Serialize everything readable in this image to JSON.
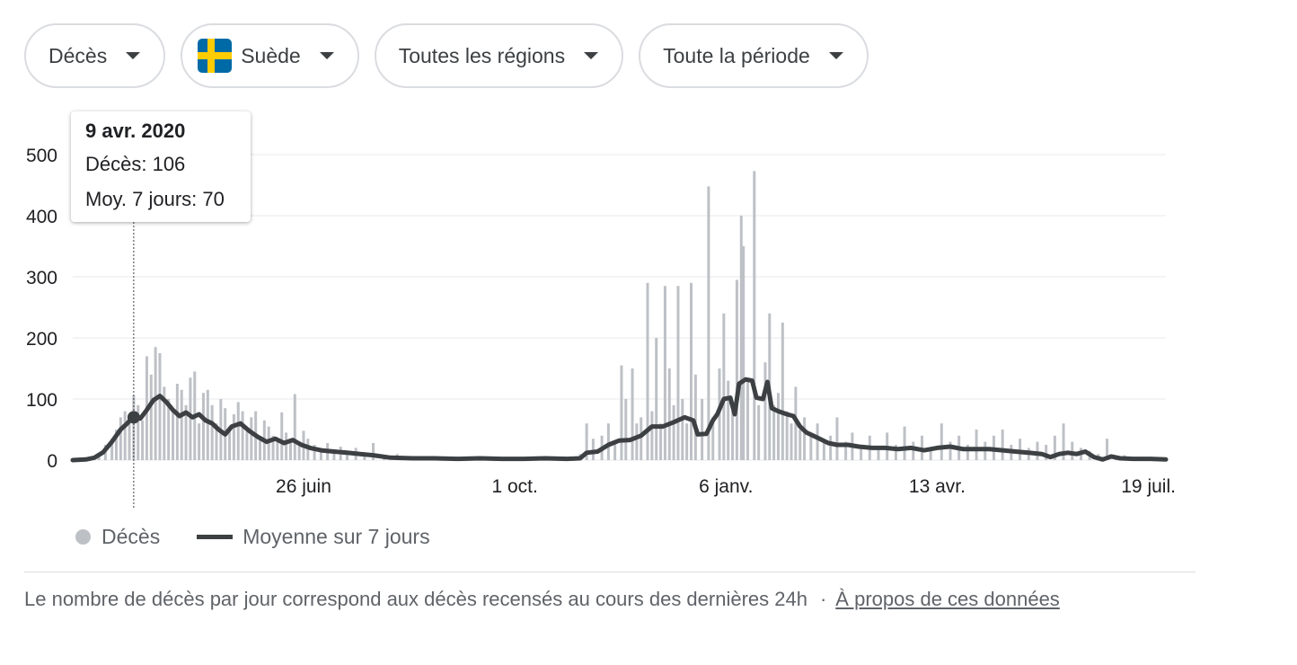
{
  "filters": {
    "metric": "Décès",
    "country": "Suède",
    "region": "Toutes les régions",
    "period": "Toute la période"
  },
  "tooltip": {
    "date": "9 avr. 2020",
    "deaths_label": "Décès: 106",
    "avg_label": "Moy. 7 jours: 70"
  },
  "legend": {
    "deaths": "Décès",
    "average": "Moyenne sur 7 jours"
  },
  "footnote": {
    "text": "Le nombre de décès par jour correspond aux décès recensés au cours des dernières 24h",
    "separator": "·",
    "link": "À propos de ces données"
  },
  "colors": {
    "bars": "#bdc1c6",
    "line": "#3c4043",
    "grid": "#e8eaed",
    "flag_blue": "#006AA7",
    "flag_yellow": "#FECC00"
  },
  "chart_data": {
    "type": "bar",
    "title": "",
    "xlabel": "",
    "ylabel": "",
    "ylim": [
      0,
      500
    ],
    "yticks": [
      0,
      100,
      200,
      300,
      400,
      500
    ],
    "xlim": [
      "2020-03-12",
      "2021-07-27"
    ],
    "xticks": [
      {
        "date": "2020-06-26",
        "label": "26 juin"
      },
      {
        "date": "2020-10-01",
        "label": "1 oct."
      },
      {
        "date": "2021-01-06",
        "label": "6 janv."
      },
      {
        "date": "2021-04-13",
        "label": "13 avr."
      },
      {
        "date": "2021-07-19",
        "label": "19 juil."
      }
    ],
    "grid": true,
    "legend_position": "bottom-left",
    "highlight": {
      "date": "2020-04-09",
      "deaths": 106,
      "avg7": 70
    },
    "series": [
      {
        "name": "Décès",
        "style": "bar",
        "points": [
          [
            "2020-03-20",
            5
          ],
          [
            "2020-03-24",
            12
          ],
          [
            "2020-03-27",
            25
          ],
          [
            "2020-03-30",
            35
          ],
          [
            "2020-04-01",
            50
          ],
          [
            "2020-04-03",
            70
          ],
          [
            "2020-04-05",
            80
          ],
          [
            "2020-04-07",
            60
          ],
          [
            "2020-04-09",
            106
          ],
          [
            "2020-04-11",
            90
          ],
          [
            "2020-04-13",
            65
          ],
          [
            "2020-04-15",
            170
          ],
          [
            "2020-04-17",
            140
          ],
          [
            "2020-04-19",
            185
          ],
          [
            "2020-04-21",
            175
          ],
          [
            "2020-04-23",
            120
          ],
          [
            "2020-04-25",
            100
          ],
          [
            "2020-04-27",
            80
          ],
          [
            "2020-04-29",
            125
          ],
          [
            "2020-05-01",
            115
          ],
          [
            "2020-05-03",
            90
          ],
          [
            "2020-05-05",
            135
          ],
          [
            "2020-05-07",
            145
          ],
          [
            "2020-05-09",
            60
          ],
          [
            "2020-05-11",
            110
          ],
          [
            "2020-05-13",
            115
          ],
          [
            "2020-05-15",
            90
          ],
          [
            "2020-05-17",
            60
          ],
          [
            "2020-05-19",
            100
          ],
          [
            "2020-05-21",
            85
          ],
          [
            "2020-05-23",
            55
          ],
          [
            "2020-05-25",
            75
          ],
          [
            "2020-05-27",
            95
          ],
          [
            "2020-05-29",
            80
          ],
          [
            "2020-05-31",
            50
          ],
          [
            "2020-06-02",
            70
          ],
          [
            "2020-06-04",
            80
          ],
          [
            "2020-06-06",
            40
          ],
          [
            "2020-06-08",
            65
          ],
          [
            "2020-06-10",
            55
          ],
          [
            "2020-06-12",
            40
          ],
          [
            "2020-06-14",
            30
          ],
          [
            "2020-06-16",
            78
          ],
          [
            "2020-06-18",
            45
          ],
          [
            "2020-06-20",
            35
          ],
          [
            "2020-06-22",
            108
          ],
          [
            "2020-06-24",
            30
          ],
          [
            "2020-06-26",
            48
          ],
          [
            "2020-06-28",
            35
          ],
          [
            "2020-07-01",
            25
          ],
          [
            "2020-07-04",
            20
          ],
          [
            "2020-07-07",
            28
          ],
          [
            "2020-07-10",
            18
          ],
          [
            "2020-07-13",
            22
          ],
          [
            "2020-07-16",
            15
          ],
          [
            "2020-07-20",
            20
          ],
          [
            "2020-07-24",
            12
          ],
          [
            "2020-07-28",
            28
          ],
          [
            "2020-08-02",
            8
          ],
          [
            "2020-08-08",
            10
          ],
          [
            "2020-08-15",
            6
          ],
          [
            "2020-08-22",
            5
          ],
          [
            "2020-08-29",
            4
          ],
          [
            "2020-09-05",
            3
          ],
          [
            "2020-09-12",
            4
          ],
          [
            "2020-09-19",
            3
          ],
          [
            "2020-09-26",
            2
          ],
          [
            "2020-10-03",
            3
          ],
          [
            "2020-10-10",
            4
          ],
          [
            "2020-10-17",
            5
          ],
          [
            "2020-10-24",
            6
          ],
          [
            "2020-10-31",
            10
          ],
          [
            "2020-11-03",
            60
          ],
          [
            "2020-11-06",
            35
          ],
          [
            "2020-11-10",
            40
          ],
          [
            "2020-11-13",
            60
          ],
          [
            "2020-11-16",
            30
          ],
          [
            "2020-11-19",
            155
          ],
          [
            "2020-11-21",
            100
          ],
          [
            "2020-11-24",
            150
          ],
          [
            "2020-11-26",
            60
          ],
          [
            "2020-11-28",
            70
          ],
          [
            "2020-12-01",
            290
          ],
          [
            "2020-12-03",
            80
          ],
          [
            "2020-12-05",
            200
          ],
          [
            "2020-12-07",
            60
          ],
          [
            "2020-12-09",
            285
          ],
          [
            "2020-12-11",
            150
          ],
          [
            "2020-12-13",
            90
          ],
          [
            "2020-12-15",
            285
          ],
          [
            "2020-12-17",
            100
          ],
          [
            "2020-12-19",
            60
          ],
          [
            "2020-12-21",
            290
          ],
          [
            "2020-12-23",
            140
          ],
          [
            "2020-12-26",
            100
          ],
          [
            "2020-12-29",
            448
          ],
          [
            "2020-12-31",
            70
          ],
          [
            "2021-01-03",
            150
          ],
          [
            "2021-01-05",
            240
          ],
          [
            "2021-01-07",
            130
          ],
          [
            "2021-01-09",
            80
          ],
          [
            "2021-01-11",
            295
          ],
          [
            "2021-01-13",
            400
          ],
          [
            "2021-01-14",
            350
          ],
          [
            "2021-01-16",
            130
          ],
          [
            "2021-01-19",
            473
          ],
          [
            "2021-01-21",
            90
          ],
          [
            "2021-01-24",
            160
          ],
          [
            "2021-01-26",
            240
          ],
          [
            "2021-01-28",
            90
          ],
          [
            "2021-01-30",
            110
          ],
          [
            "2021-02-01",
            225
          ],
          [
            "2021-02-03",
            80
          ],
          [
            "2021-02-05",
            60
          ],
          [
            "2021-02-07",
            120
          ],
          [
            "2021-02-09",
            50
          ],
          [
            "2021-02-11",
            70
          ],
          [
            "2021-02-14",
            40
          ],
          [
            "2021-02-17",
            60
          ],
          [
            "2021-02-20",
            30
          ],
          [
            "2021-02-23",
            40
          ],
          [
            "2021-02-26",
            70
          ],
          [
            "2021-03-02",
            30
          ],
          [
            "2021-03-05",
            45
          ],
          [
            "2021-03-09",
            25
          ],
          [
            "2021-03-13",
            40
          ],
          [
            "2021-03-17",
            20
          ],
          [
            "2021-03-21",
            45
          ],
          [
            "2021-03-25",
            25
          ],
          [
            "2021-03-29",
            55
          ],
          [
            "2021-04-02",
            30
          ],
          [
            "2021-04-06",
            40
          ],
          [
            "2021-04-10",
            20
          ],
          [
            "2021-04-15",
            60
          ],
          [
            "2021-04-19",
            30
          ],
          [
            "2021-04-23",
            40
          ],
          [
            "2021-04-27",
            25
          ],
          [
            "2021-05-01",
            50
          ],
          [
            "2021-05-05",
            30
          ],
          [
            "2021-05-09",
            40
          ],
          [
            "2021-05-13",
            50
          ],
          [
            "2021-05-17",
            25
          ],
          [
            "2021-05-21",
            35
          ],
          [
            "2021-05-25",
            20
          ],
          [
            "2021-05-29",
            30
          ],
          [
            "2021-06-02",
            25
          ],
          [
            "2021-06-06",
            40
          ],
          [
            "2021-06-10",
            60
          ],
          [
            "2021-06-14",
            30
          ],
          [
            "2021-06-18",
            20
          ],
          [
            "2021-06-22",
            15
          ],
          [
            "2021-06-26",
            10
          ],
          [
            "2021-06-30",
            35
          ],
          [
            "2021-07-04",
            5
          ],
          [
            "2021-07-08",
            8
          ],
          [
            "2021-07-12",
            5
          ],
          [
            "2021-07-16",
            3
          ],
          [
            "2021-07-20",
            2
          ],
          [
            "2021-07-24",
            2
          ]
        ]
      },
      {
        "name": "Moyenne sur 7 jours",
        "style": "line",
        "points": [
          [
            "2020-03-12",
            0
          ],
          [
            "2020-03-18",
            1
          ],
          [
            "2020-03-22",
            4
          ],
          [
            "2020-03-26",
            13
          ],
          [
            "2020-03-30",
            30
          ],
          [
            "2020-04-03",
            50
          ],
          [
            "2020-04-06",
            60
          ],
          [
            "2020-04-08",
            68
          ],
          [
            "2020-04-09",
            70
          ],
          [
            "2020-04-12",
            68
          ],
          [
            "2020-04-15",
            82
          ],
          [
            "2020-04-18",
            98
          ],
          [
            "2020-04-21",
            105
          ],
          [
            "2020-04-24",
            95
          ],
          [
            "2020-04-27",
            82
          ],
          [
            "2020-04-30",
            72
          ],
          [
            "2020-05-03",
            78
          ],
          [
            "2020-05-06",
            70
          ],
          [
            "2020-05-09",
            75
          ],
          [
            "2020-05-12",
            65
          ],
          [
            "2020-05-15",
            60
          ],
          [
            "2020-05-18",
            50
          ],
          [
            "2020-05-21",
            42
          ],
          [
            "2020-05-24",
            55
          ],
          [
            "2020-05-28",
            60
          ],
          [
            "2020-06-01",
            48
          ],
          [
            "2020-06-05",
            38
          ],
          [
            "2020-06-09",
            30
          ],
          [
            "2020-06-13",
            35
          ],
          [
            "2020-06-17",
            28
          ],
          [
            "2020-06-21",
            33
          ],
          [
            "2020-06-25",
            25
          ],
          [
            "2020-06-29",
            20
          ],
          [
            "2020-07-04",
            16
          ],
          [
            "2020-07-10",
            14
          ],
          [
            "2020-07-16",
            12
          ],
          [
            "2020-07-22",
            10
          ],
          [
            "2020-07-28",
            8
          ],
          [
            "2020-08-05",
            4
          ],
          [
            "2020-08-15",
            3
          ],
          [
            "2020-08-25",
            3
          ],
          [
            "2020-09-05",
            2
          ],
          [
            "2020-09-15",
            3
          ],
          [
            "2020-09-25",
            2
          ],
          [
            "2020-10-05",
            2
          ],
          [
            "2020-10-15",
            3
          ],
          [
            "2020-10-25",
            2
          ],
          [
            "2020-10-31",
            3
          ],
          [
            "2020-11-03",
            12
          ],
          [
            "2020-11-08",
            14
          ],
          [
            "2020-11-13",
            25
          ],
          [
            "2020-11-18",
            32
          ],
          [
            "2020-11-23",
            33
          ],
          [
            "2020-11-28",
            40
          ],
          [
            "2020-12-03",
            55
          ],
          [
            "2020-12-08",
            55
          ],
          [
            "2020-12-13",
            62
          ],
          [
            "2020-12-18",
            70
          ],
          [
            "2020-12-22",
            65
          ],
          [
            "2020-12-24",
            42
          ],
          [
            "2020-12-28",
            43
          ],
          [
            "2020-12-31",
            65
          ],
          [
            "2021-01-02",
            75
          ],
          [
            "2021-01-05",
            100
          ],
          [
            "2021-01-08",
            102
          ],
          [
            "2021-01-10",
            75
          ],
          [
            "2021-01-12",
            125
          ],
          [
            "2021-01-15",
            132
          ],
          [
            "2021-01-18",
            130
          ],
          [
            "2021-01-20",
            102
          ],
          [
            "2021-01-23",
            100
          ],
          [
            "2021-01-25",
            128
          ],
          [
            "2021-01-27",
            85
          ],
          [
            "2021-01-30",
            80
          ],
          [
            "2021-02-03",
            75
          ],
          [
            "2021-02-06",
            72
          ],
          [
            "2021-02-09",
            55
          ],
          [
            "2021-02-12",
            45
          ],
          [
            "2021-02-15",
            40
          ],
          [
            "2021-02-18",
            35
          ],
          [
            "2021-02-22",
            28
          ],
          [
            "2021-02-26",
            25
          ],
          [
            "2021-03-03",
            25
          ],
          [
            "2021-03-08",
            22
          ],
          [
            "2021-03-14",
            20
          ],
          [
            "2021-03-20",
            20
          ],
          [
            "2021-03-26",
            18
          ],
          [
            "2021-04-01",
            20
          ],
          [
            "2021-04-07",
            16
          ],
          [
            "2021-04-13",
            20
          ],
          [
            "2021-04-19",
            22
          ],
          [
            "2021-04-25",
            18
          ],
          [
            "2021-05-01",
            18
          ],
          [
            "2021-05-07",
            18
          ],
          [
            "2021-05-13",
            16
          ],
          [
            "2021-05-19",
            14
          ],
          [
            "2021-05-25",
            12
          ],
          [
            "2021-05-31",
            10
          ],
          [
            "2021-06-04",
            5
          ],
          [
            "2021-06-08",
            10
          ],
          [
            "2021-06-12",
            12
          ],
          [
            "2021-06-16",
            10
          ],
          [
            "2021-06-20",
            14
          ],
          [
            "2021-06-24",
            5
          ],
          [
            "2021-06-28",
            1
          ],
          [
            "2021-07-02",
            6
          ],
          [
            "2021-07-06",
            3
          ],
          [
            "2021-07-12",
            2
          ],
          [
            "2021-07-20",
            2
          ],
          [
            "2021-07-27",
            1
          ]
        ]
      }
    ]
  }
}
